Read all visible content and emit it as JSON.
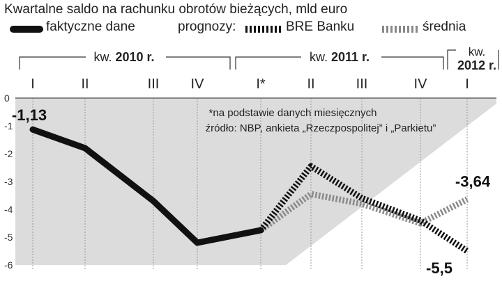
{
  "chart_data": {
    "type": "line",
    "title": "Kwartalne saldo na rachunku obrotów bieżących, mld euro",
    "legend": {
      "actual": "faktyczne dane",
      "forecasts_label": "prognozy:",
      "bre": "BRE Banku",
      "avg": "średnia"
    },
    "year_groups": [
      {
        "label_prefix": "kw.",
        "label_year": "2010 r."
      },
      {
        "label_prefix": "kw.",
        "label_year": "2011 r."
      },
      {
        "label_prefix": "kw.",
        "label_year": "2012 r."
      }
    ],
    "categories": [
      "I",
      "II",
      "III",
      "IV",
      "I*",
      "II",
      "III",
      "IV",
      "I"
    ],
    "y_ticks": [
      "0",
      "-1",
      "-2",
      "-3",
      "-4",
      "-5",
      "-6"
    ],
    "ylim": [
      -6,
      0
    ],
    "note": "*na podstawie danych miesięcznych",
    "source": "źródło: NBP, ankieta „Rzeczpospolitej” i „Parkietu”",
    "series": [
      {
        "name": "faktyczne dane",
        "style": "actual",
        "color": "#111111",
        "values": [
          -1.13,
          -1.8,
          -3.7,
          -5.2,
          -4.75,
          null,
          null,
          null,
          null
        ]
      },
      {
        "name": "BRE Banku",
        "style": "bre",
        "color": "#111111",
        "values": [
          null,
          null,
          null,
          null,
          -4.75,
          -2.45,
          -3.6,
          -4.4,
          -5.5
        ]
      },
      {
        "name": "średnia",
        "style": "avg",
        "color": "#8a8a8a",
        "values": [
          null,
          null,
          null,
          null,
          -4.75,
          -3.45,
          -3.8,
          -4.5,
          -3.64
        ]
      }
    ],
    "data_labels": [
      {
        "text": "-1,13",
        "index": 0,
        "value": -1.13
      },
      {
        "text": "-3,64",
        "index": 8,
        "value": -3.64
      },
      {
        "text": "-5,5",
        "index": 8,
        "value": -5.5
      }
    ],
    "colors": {
      "shade": "#dcdcdc",
      "grid": "#9a9a9a"
    }
  }
}
